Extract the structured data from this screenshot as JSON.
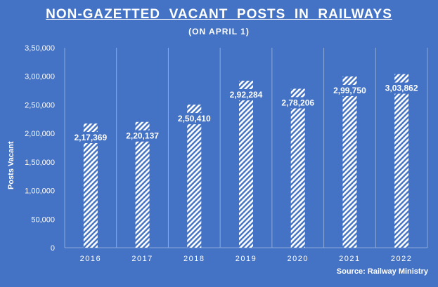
{
  "chart_data": {
    "type": "bar",
    "title": "NON-GAZETTED  VACANT  POSTS  IN  RAILWAYS",
    "subtitle": "(ON  APRIL  1)",
    "ylabel": "Posts Vacant",
    "xlabel": "",
    "source": "Source:  Railway Ministry",
    "categories": [
      "2016",
      "2017",
      "2018",
      "2019",
      "2020",
      "2021",
      "2022"
    ],
    "values": [
      217369,
      220137,
      250410,
      292284,
      278206,
      299750,
      303862
    ],
    "value_labels": [
      "2,17,369",
      "2,20,137",
      "2,50,410",
      "2,92,284",
      "2,78,206",
      "2,99,750",
      "3,03,862"
    ],
    "ylim": [
      0,
      350000
    ],
    "yticks": [
      0,
      50000,
      100000,
      150000,
      200000,
      250000,
      300000,
      350000
    ],
    "ytick_labels": [
      "0",
      "50,000",
      "1,00,000",
      "1,50,000",
      "2,00,000",
      "2,50,000",
      "3,00,000",
      "3,50,000"
    ],
    "grid": "vertical",
    "colors": {
      "background": "#4472c4",
      "bar_pattern": "#ffffff",
      "text": "#ffffff"
    }
  }
}
